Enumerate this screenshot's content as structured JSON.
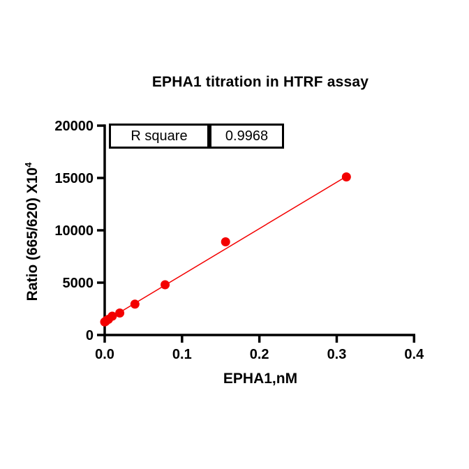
{
  "chart_data": {
    "type": "scatter",
    "title": "EPHA1 titration in HTRF assay",
    "xlabel": "EPHA1,nM",
    "ylabel": "Ratio (665/620) X10",
    "ylabel_sup": "4",
    "xlim": [
      0,
      0.4
    ],
    "ylim": [
      0,
      20000
    ],
    "x_ticks": [
      "0.0",
      "0.1",
      "0.2",
      "0.3",
      "0.4"
    ],
    "y_ticks": [
      "0",
      "5000",
      "10000",
      "15000",
      "20000"
    ],
    "grid": false,
    "legend": "none",
    "marker_color": "#f30000",
    "line_color": "#f30000",
    "axis_color": "#000000",
    "stats": {
      "label": "R square",
      "value": "0.9968"
    },
    "points": [
      {
        "x": 0.0,
        "y": 1250
      },
      {
        "x": 0.0012,
        "y": 1300
      },
      {
        "x": 0.0024,
        "y": 1400
      },
      {
        "x": 0.0049,
        "y": 1500
      },
      {
        "x": 0.0098,
        "y": 1800
      },
      {
        "x": 0.0195,
        "y": 2100
      },
      {
        "x": 0.0391,
        "y": 2950
      },
      {
        "x": 0.0781,
        "y": 4800
      },
      {
        "x": 0.1563,
        "y": 8900
      },
      {
        "x": 0.3125,
        "y": 15100
      }
    ],
    "fit_line": {
      "x1": 0,
      "y1": 1300,
      "x2": 0.3125,
      "y2": 15150
    }
  }
}
